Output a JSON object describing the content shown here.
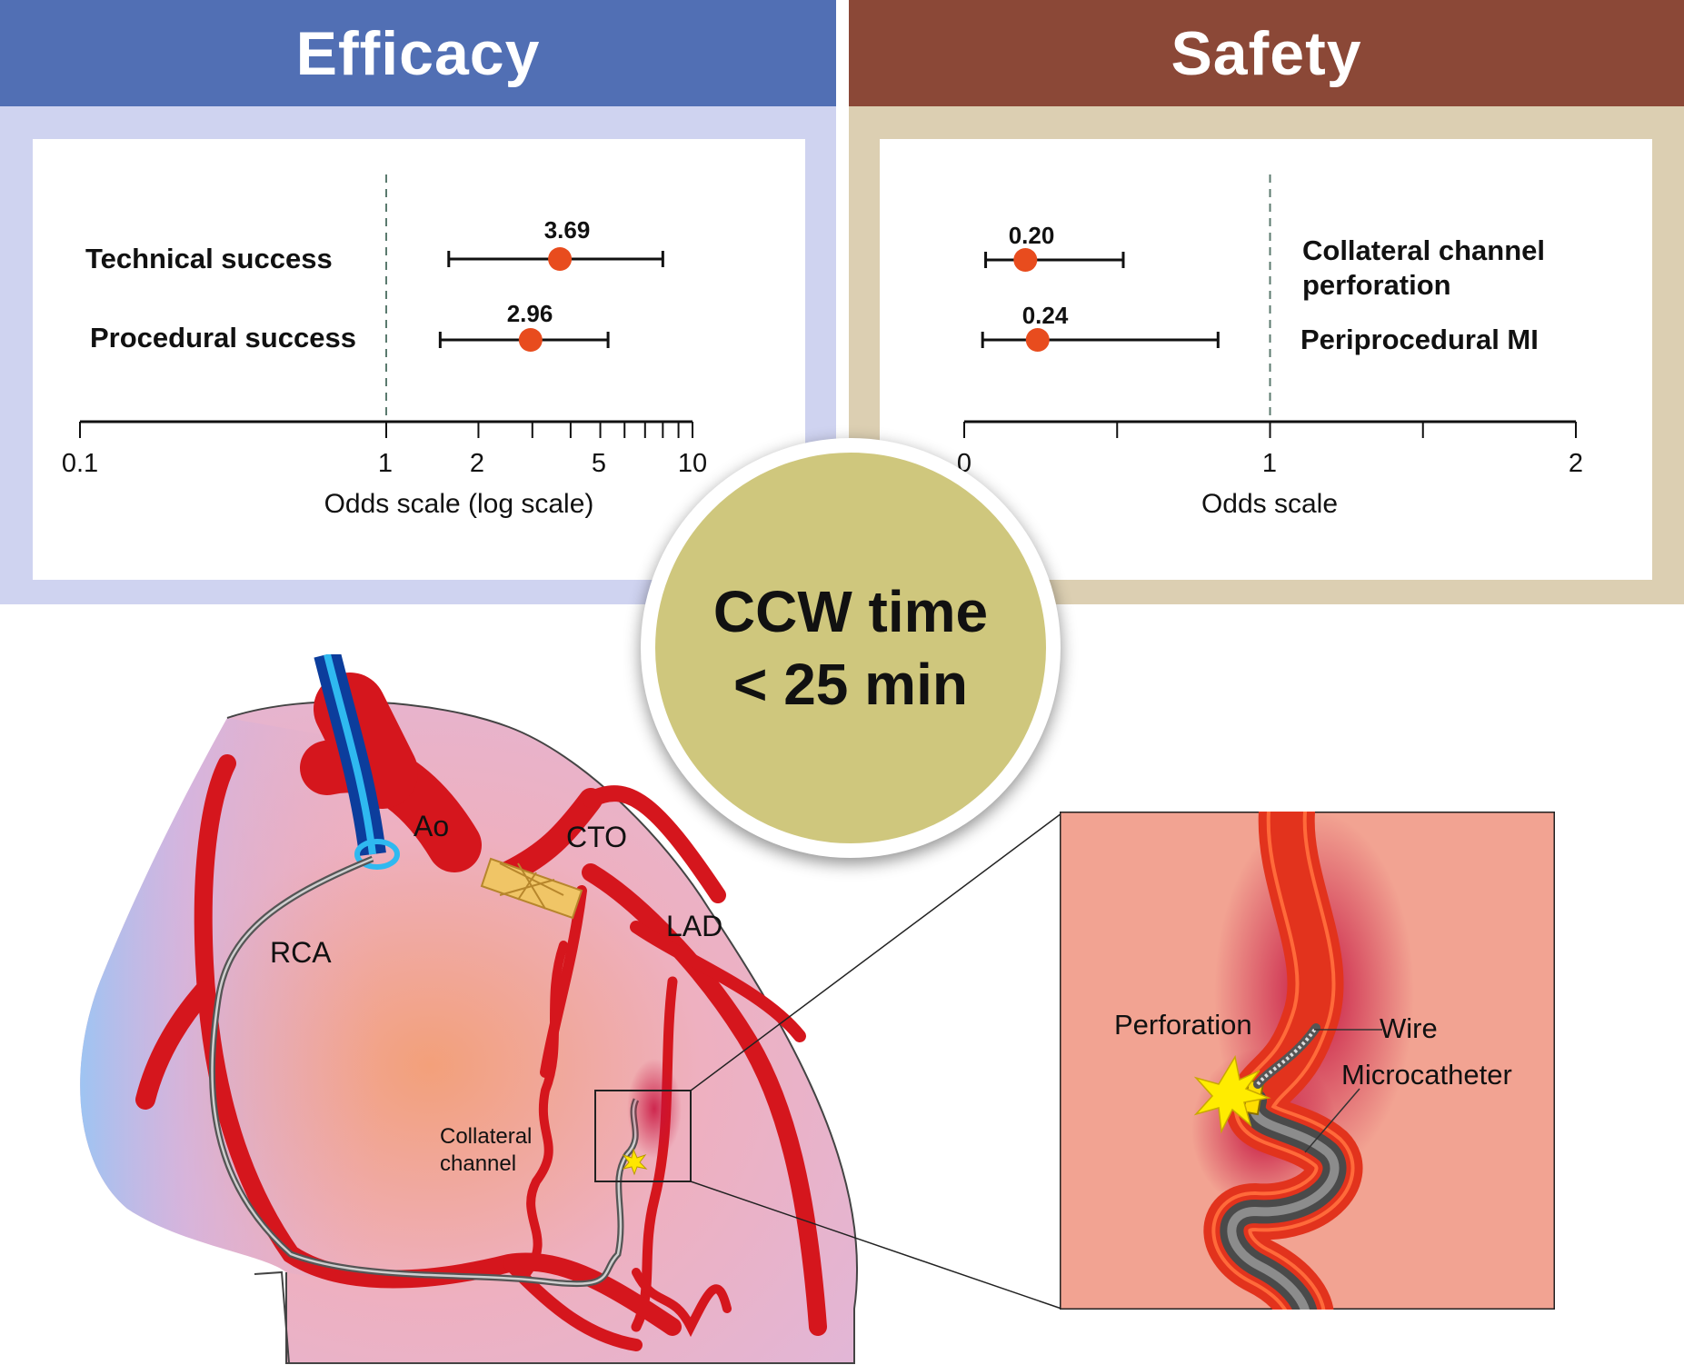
{
  "efficacy": {
    "header": "Efficacy",
    "header_color": "#516fb4",
    "frame_color": "#cfd3f0",
    "rows": [
      {
        "label": "Technical success",
        "value_label": "3.69"
      },
      {
        "label": "Procedural success",
        "value_label": "2.96"
      }
    ],
    "axis_ticks": [
      "0.1",
      "1",
      "2",
      "5",
      "10"
    ],
    "axis_title": "Odds scale (log scale)"
  },
  "safety": {
    "header": "Safety",
    "header_color": "#8b4837",
    "frame_color": "#dccfb2",
    "rows": [
      {
        "label_line1": "Collateral channel",
        "label_line2": "perforation",
        "value_label": "0.20"
      },
      {
        "label": "Periprocedural MI",
        "value_label": "0.24"
      }
    ],
    "axis_ticks": [
      "0",
      "1",
      "2"
    ],
    "axis_title": "Odds scale"
  },
  "center_badge": {
    "line1": "CCW time",
    "line2": "< 25 min"
  },
  "heart_labels": {
    "ao": "Ao",
    "cto": "CTO",
    "lad": "LAD",
    "rca": "RCA",
    "collateral_line1": "Collateral",
    "collateral_line2": "channel"
  },
  "inset_labels": {
    "perforation": "Perforation",
    "wire": "Wire",
    "microcatheter": "Microcatheter"
  },
  "chart_data": [
    {
      "type": "scatter",
      "title": "Efficacy",
      "xlabel": "Odds scale (log scale)",
      "xscale": "log",
      "xlim": [
        0.1,
        10
      ],
      "reference_line": 1,
      "series": [
        {
          "name": "Technical success",
          "estimate": 3.69,
          "ci": [
            1.6,
            8.0
          ]
        },
        {
          "name": "Procedural success",
          "estimate": 2.96,
          "ci": [
            1.5,
            5.3
          ]
        }
      ]
    },
    {
      "type": "scatter",
      "title": "Safety",
      "xlabel": "Odds scale",
      "xlim": [
        0,
        2
      ],
      "reference_line": 1,
      "series": [
        {
          "name": "Collateral channel perforation",
          "estimate": 0.2,
          "ci": [
            0.07,
            0.52
          ]
        },
        {
          "name": "Periprocedural MI",
          "estimate": 0.24,
          "ci": [
            0.06,
            0.83
          ]
        }
      ]
    }
  ]
}
